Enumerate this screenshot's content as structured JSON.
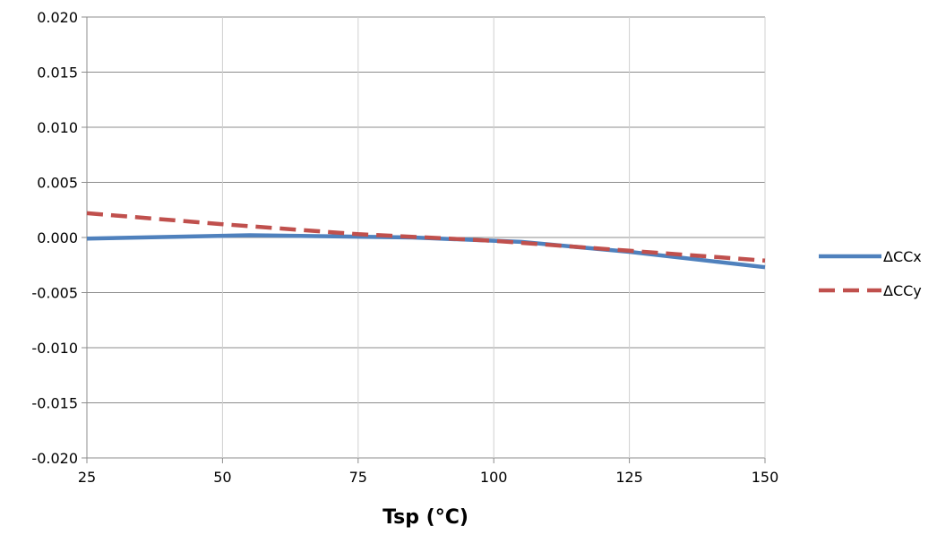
{
  "chart_data": {
    "type": "line",
    "title": "",
    "xlabel": "Tsp (°C)",
    "ylabel": "",
    "xlim": [
      25,
      150
    ],
    "ylim": [
      -0.02,
      0.02
    ],
    "xticks": [
      25,
      50,
      75,
      100,
      125,
      150
    ],
    "yticks": [
      0.02,
      0.015,
      0.01,
      0.005,
      0.0,
      -0.005,
      -0.01,
      -0.015,
      -0.02
    ],
    "xtick_labels": [
      "25",
      "50",
      "75",
      "100",
      "125",
      "150"
    ],
    "ytick_labels": [
      "0.020",
      "0.015",
      "0.010",
      "0.005",
      "0.000",
      "-0.005",
      "-0.010",
      "-0.015",
      "-0.020"
    ],
    "grid": true,
    "legend_position": "right",
    "series": [
      {
        "name": "ΔCCx",
        "color": "#4F81BD",
        "style": "solid",
        "x": [
          25,
          55,
          85,
          105,
          125,
          150
        ],
        "y": [
          -0.0001,
          0.0002,
          0.0,
          -0.0004,
          -0.0013,
          -0.0027
        ]
      },
      {
        "name": "ΔCCy",
        "color": "#C0504D",
        "style": "dashed",
        "x": [
          25,
          50,
          75,
          100,
          125,
          150
        ],
        "y": [
          0.0022,
          0.0012,
          0.0003,
          -0.0003,
          -0.0012,
          -0.0021
        ]
      }
    ]
  }
}
